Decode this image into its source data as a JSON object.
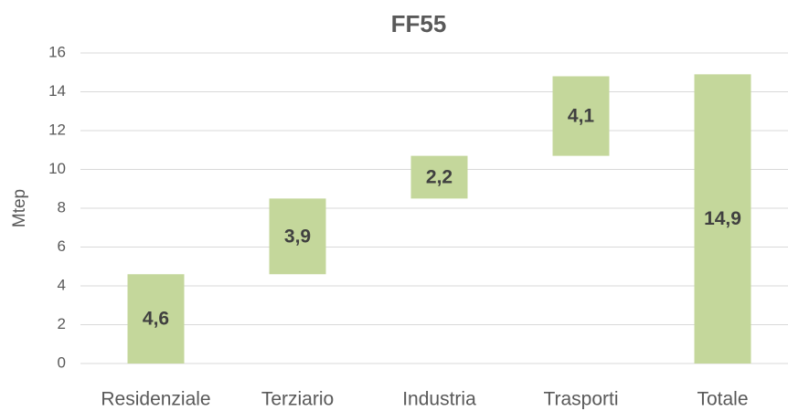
{
  "chart_data": {
    "type": "waterfall",
    "title": "FF55",
    "y_label": "Mtep",
    "categories": [
      "Residenziale",
      "Terziario",
      "Industria",
      "Trasporti",
      "Totale"
    ],
    "values": [
      4.6,
      3.9,
      2.2,
      4.1,
      14.9
    ],
    "value_labels": [
      "4,6",
      "3,9",
      "2,2",
      "4,1",
      "14,9"
    ],
    "is_total": [
      false,
      false,
      false,
      false,
      true
    ],
    "color": "#c4d79b",
    "ylim": [
      0,
      16
    ],
    "yticks": [
      0,
      2,
      4,
      6,
      8,
      10,
      12,
      14,
      16
    ],
    "grid": true
  }
}
